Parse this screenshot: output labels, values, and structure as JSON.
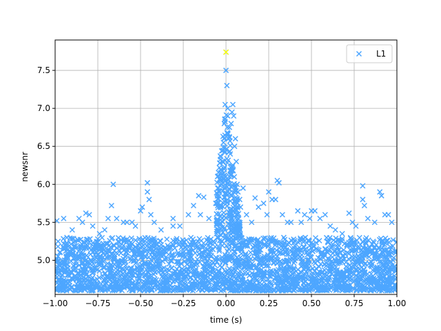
{
  "chart_data": {
    "type": "scatter",
    "title": "",
    "xlabel": "time (s)",
    "ylabel": "newsnr",
    "xlim": [
      -1.0,
      1.0
    ],
    "ylim": [
      4.55,
      7.9
    ],
    "xticks": [
      -1.0,
      -0.75,
      -0.5,
      -0.25,
      0.0,
      0.25,
      0.5,
      0.75,
      1.0
    ],
    "xtick_labels": [
      "−1.00",
      "−0.75",
      "−0.50",
      "−0.25",
      "0.00",
      "0.25",
      "0.50",
      "0.75",
      "1.00"
    ],
    "yticks": [
      5.0,
      5.5,
      6.0,
      6.5,
      7.0,
      7.5
    ],
    "ytick_labels": [
      "5.0",
      "5.5",
      "6.0",
      "6.5",
      "7.0",
      "7.5"
    ],
    "grid": true,
    "legend_position": "top-right",
    "marker": "x",
    "series": [
      {
        "name": "L1",
        "color": "#4da6ff",
        "background_band": {
          "x_range": [
            -1.0,
            1.0
          ],
          "y_range": [
            4.6,
            5.3
          ],
          "note_density": "dense"
        },
        "points": [
          [
            -0.99,
            5.52
          ],
          [
            -0.95,
            5.55
          ],
          [
            -0.9,
            5.4
          ],
          [
            -0.86,
            5.55
          ],
          [
            -0.84,
            5.5
          ],
          [
            -0.82,
            5.62
          ],
          [
            -0.8,
            5.6
          ],
          [
            -0.78,
            5.45
          ],
          [
            -0.74,
            5.35
          ],
          [
            -0.71,
            5.4
          ],
          [
            -0.69,
            5.55
          ],
          [
            -0.67,
            5.72
          ],
          [
            -0.66,
            6.0
          ],
          [
            -0.64,
            5.55
          ],
          [
            -0.6,
            5.5
          ],
          [
            -0.58,
            5.5
          ],
          [
            -0.55,
            5.5
          ],
          [
            -0.53,
            5.45
          ],
          [
            -0.5,
            5.65
          ],
          [
            -0.49,
            5.7
          ],
          [
            -0.46,
            6.02
          ],
          [
            -0.46,
            5.9
          ],
          [
            -0.45,
            5.8
          ],
          [
            -0.44,
            5.6
          ],
          [
            -0.42,
            5.5
          ],
          [
            -0.38,
            5.4
          ],
          [
            -0.31,
            5.55
          ],
          [
            -0.31,
            5.45
          ],
          [
            -0.27,
            5.45
          ],
          [
            -0.22,
            5.6
          ],
          [
            -0.19,
            5.72
          ],
          [
            -0.16,
            5.85
          ],
          [
            -0.15,
            5.6
          ],
          [
            -0.13,
            5.83
          ],
          [
            -0.1,
            5.55
          ],
          [
            -0.06,
            5.75
          ],
          [
            -0.04,
            5.9
          ],
          [
            -0.03,
            6.1
          ],
          [
            -0.02,
            6.3
          ],
          [
            -0.015,
            6.55
          ],
          [
            -0.01,
            6.8
          ],
          [
            -0.005,
            7.05
          ],
          [
            0.0,
            7.5
          ],
          [
            0.0,
            7.74
          ],
          [
            0.005,
            7.3
          ],
          [
            0.01,
            7.0
          ],
          [
            0.01,
            6.9
          ],
          [
            0.015,
            6.6
          ],
          [
            0.02,
            6.75
          ],
          [
            0.025,
            6.4
          ],
          [
            0.03,
            6.8
          ],
          [
            0.035,
            6.95
          ],
          [
            0.04,
            7.05
          ],
          [
            0.045,
            6.9
          ],
          [
            0.05,
            6.5
          ],
          [
            0.055,
            6.6
          ],
          [
            0.06,
            6.3
          ],
          [
            0.065,
            6.0
          ],
          [
            0.07,
            5.9
          ],
          [
            0.08,
            5.8
          ],
          [
            0.085,
            5.7
          ],
          [
            0.1,
            5.95
          ],
          [
            0.12,
            5.6
          ],
          [
            0.15,
            5.5
          ],
          [
            0.17,
            5.82
          ],
          [
            0.19,
            5.7
          ],
          [
            0.22,
            5.75
          ],
          [
            0.24,
            5.6
          ],
          [
            0.25,
            5.9
          ],
          [
            0.27,
            5.8
          ],
          [
            0.29,
            5.8
          ],
          [
            0.3,
            6.05
          ],
          [
            0.31,
            6.02
          ],
          [
            0.33,
            5.6
          ],
          [
            0.36,
            5.5
          ],
          [
            0.38,
            5.5
          ],
          [
            0.42,
            5.65
          ],
          [
            0.44,
            5.5
          ],
          [
            0.46,
            5.6
          ],
          [
            0.49,
            5.55
          ],
          [
            0.5,
            5.65
          ],
          [
            0.52,
            5.65
          ],
          [
            0.55,
            5.55
          ],
          [
            0.58,
            5.6
          ],
          [
            0.61,
            5.45
          ],
          [
            0.64,
            5.4
          ],
          [
            0.68,
            5.35
          ],
          [
            0.72,
            5.62
          ],
          [
            0.74,
            5.5
          ],
          [
            0.76,
            5.45
          ],
          [
            0.8,
            5.98
          ],
          [
            0.8,
            5.8
          ],
          [
            0.81,
            5.72
          ],
          [
            0.83,
            5.55
          ],
          [
            0.87,
            5.5
          ],
          [
            0.9,
            5.9
          ],
          [
            0.91,
            5.85
          ],
          [
            0.93,
            5.6
          ],
          [
            0.95,
            5.6
          ],
          [
            0.97,
            5.5
          ]
        ]
      }
    ],
    "highlight_point": {
      "x": 0.0,
      "y": 7.74,
      "color": "#ffff00"
    }
  }
}
